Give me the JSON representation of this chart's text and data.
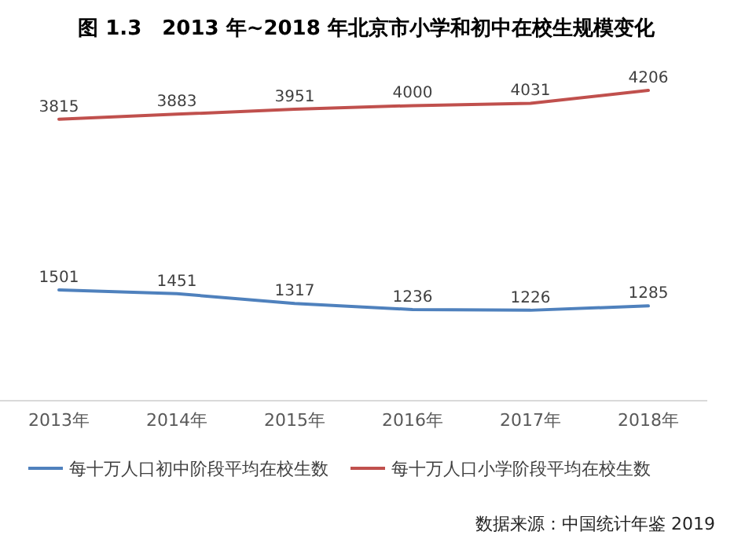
{
  "chart_data": {
    "type": "line",
    "title": "图 1.3　2013 年~2018 年北京市小学和初中在校生规模变化",
    "categories": [
      "2013年",
      "2014年",
      "2015年",
      "2016年",
      "2017年",
      "2018年"
    ],
    "series": [
      {
        "name": "每十万人口初中阶段平均在校生数",
        "color": "#4f81bd",
        "values": [
          1501,
          1451,
          1317,
          1236,
          1226,
          1285
        ]
      },
      {
        "name": "每十万人口小学阶段平均在校生数",
        "color": "#c0504d",
        "values": [
          3815,
          3883,
          3951,
          4000,
          4031,
          4206
        ]
      }
    ],
    "tick_labels": "x",
    "data_labels": true,
    "legend": "bottom",
    "marker": "none",
    "line_style": "solid",
    "annotations": [
      "数据来源：中国统计年鉴 2019"
    ]
  }
}
